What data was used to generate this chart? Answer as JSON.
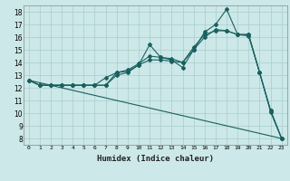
{
  "xlabel": "Humidex (Indice chaleur)",
  "ylabel": "",
  "bg_color": "#cce8e8",
  "grid_color": "#aacccc",
  "line_color": "#1a6060",
  "xlim": [
    -0.5,
    23.5
  ],
  "ylim": [
    7.5,
    18.5
  ],
  "xticks": [
    0,
    1,
    2,
    3,
    4,
    5,
    6,
    7,
    8,
    9,
    10,
    11,
    12,
    13,
    14,
    15,
    16,
    17,
    18,
    19,
    20,
    21,
    22,
    23
  ],
  "yticks": [
    8,
    9,
    10,
    11,
    12,
    13,
    14,
    15,
    16,
    17,
    18
  ],
  "line1": {
    "x": [
      0,
      1,
      2,
      3,
      4,
      5,
      6,
      7,
      8,
      9,
      10,
      11,
      12,
      13,
      14,
      15,
      16,
      17,
      18,
      19,
      20,
      21,
      22,
      23
    ],
    "y": [
      12.6,
      12.2,
      12.2,
      12.2,
      12.2,
      12.2,
      12.2,
      12.2,
      13.2,
      13.3,
      13.8,
      15.4,
      14.4,
      14.2,
      13.6,
      15.0,
      16.4,
      17.0,
      18.2,
      16.2,
      16.2,
      13.2,
      10.2,
      8.0
    ]
  },
  "line2": {
    "x": [
      0,
      1,
      2,
      3,
      4,
      5,
      6,
      7,
      8,
      9,
      10,
      11,
      12,
      13,
      14,
      15,
      16,
      17,
      18,
      19,
      20,
      21,
      22,
      23
    ],
    "y": [
      12.6,
      12.2,
      12.2,
      12.2,
      12.2,
      12.2,
      12.2,
      12.8,
      13.2,
      13.4,
      13.9,
      14.5,
      14.4,
      14.3,
      14.0,
      15.2,
      16.2,
      16.5,
      16.5,
      16.2,
      16.2,
      13.2,
      10.2,
      8.0
    ]
  },
  "line3": {
    "x": [
      0,
      1,
      2,
      3,
      4,
      5,
      6,
      7,
      8,
      9,
      10,
      11,
      12,
      13,
      14,
      15,
      16,
      17,
      18,
      19,
      20,
      21,
      22,
      23
    ],
    "y": [
      12.6,
      12.2,
      12.2,
      12.2,
      12.2,
      12.2,
      12.2,
      12.2,
      13.0,
      13.2,
      13.8,
      14.2,
      14.2,
      14.1,
      14.0,
      15.0,
      16.0,
      16.6,
      16.5,
      16.2,
      16.1,
      13.2,
      10.1,
      8.0
    ]
  },
  "line4": {
    "x": [
      0,
      23
    ],
    "y": [
      12.6,
      8.0
    ]
  },
  "figsize": [
    3.2,
    2.0
  ],
  "dpi": 100
}
